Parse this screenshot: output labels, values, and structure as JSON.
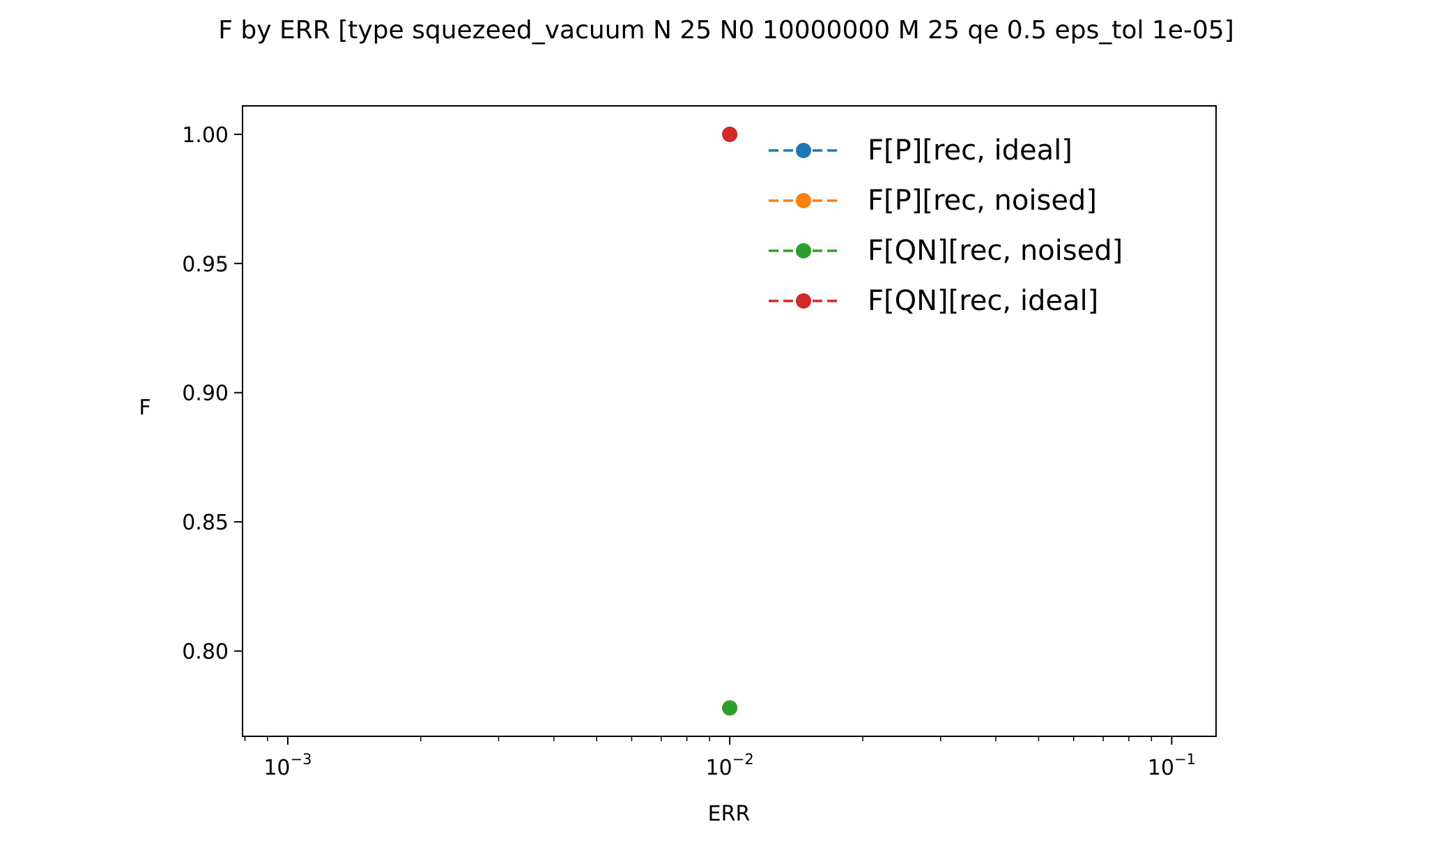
{
  "chart_data": {
    "type": "scatter",
    "title": "F by ERR [type squezeed_vacuum N 25 N0 10000000 M 25 qe 0.5 eps_tol 1e-05]",
    "xlabel": "ERR",
    "ylabel": "F",
    "xscale": "log",
    "xlim": [
      0.00079,
      0.126
    ],
    "ylim": [
      0.767,
      1.011
    ],
    "xticks": [
      {
        "value": 0.001,
        "base": "10",
        "exp": "−3"
      },
      {
        "value": 0.01,
        "base": "10",
        "exp": "−2"
      },
      {
        "value": 0.1,
        "base": "10",
        "exp": "−1"
      }
    ],
    "yticks": [
      {
        "value": 0.8,
        "label": "0.80"
      },
      {
        "value": 0.85,
        "label": "0.85"
      },
      {
        "value": 0.9,
        "label": "0.90"
      },
      {
        "value": 0.95,
        "label": "0.95"
      },
      {
        "value": 1.0,
        "label": "1.00"
      }
    ],
    "grid": false,
    "legend_position": "upper right",
    "line_style": "dashed",
    "marker": "circle",
    "series": [
      {
        "name": "F[P][rec, ideal]",
        "color": "#1f77b4",
        "x": [
          0.01
        ],
        "y": [
          1.0
        ]
      },
      {
        "name": "F[P][rec, noised]",
        "color": "#ff7f0e",
        "x": [
          0.01
        ],
        "y": [
          0.778
        ]
      },
      {
        "name": "F[QN][rec, noised]",
        "color": "#2ca02c",
        "x": [
          0.01
        ],
        "y": [
          0.778
        ]
      },
      {
        "name": "F[QN][rec, ideal]",
        "color": "#d62728",
        "x": [
          0.01
        ],
        "y": [
          1.0
        ]
      }
    ]
  }
}
